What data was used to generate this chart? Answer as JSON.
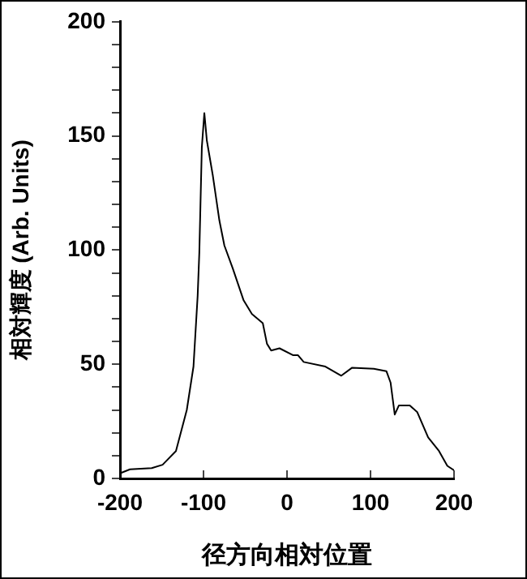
{
  "chart_data": {
    "type": "line",
    "xlabel": "径方向相対位置",
    "ylabel": "相対輝度 (Arb. Units)",
    "xlim": [
      -200,
      200
    ],
    "xticks": [
      -200,
      -100,
      0,
      100,
      200
    ],
    "ylim": [
      0,
      200
    ],
    "yticks": [
      0,
      {
        "value": 10,
        "label": null
      },
      {
        "value": 20,
        "label": null
      },
      {
        "value": 30,
        "label": null
      },
      {
        "value": 40,
        "label": null
      },
      50,
      {
        "value": 60,
        "label": null
      },
      {
        "value": 70,
        "label": null
      },
      {
        "value": 80,
        "label": null
      },
      {
        "value": 90,
        "label": null
      },
      100,
      {
        "value": 110,
        "label": null
      },
      {
        "value": 120,
        "label": null
      },
      {
        "value": 130,
        "label": null
      },
      {
        "value": 140,
        "label": null
      },
      150,
      {
        "value": 160,
        "label": null
      },
      {
        "value": 170,
        "label": null
      },
      {
        "value": 180,
        "label": null
      },
      {
        "value": 190,
        "label": null
      },
      200
    ],
    "grid": false,
    "legend": false,
    "marker": "none",
    "line_style": "solid",
    "series": [
      {
        "color": "#000000",
        "x": [
          -199,
          -188,
          -162,
          -149,
          -133,
          -120,
          -112,
          -107,
          -105,
          -102,
          -99,
          -96,
          -89,
          -81,
          -75,
          -65,
          -52,
          -42,
          -29,
          -24,
          -19,
          -9,
          7,
          13,
          20,
          46,
          65,
          78,
          104,
          119,
          124,
          129,
          134,
          147,
          156,
          169,
          182,
          192,
          200
        ],
        "values": [
          2.4,
          4,
          4.5,
          6,
          12,
          30,
          49,
          80,
          99,
          145,
          160,
          148,
          133,
          113,
          102,
          92,
          78,
          72,
          68,
          59,
          56,
          57,
          54,
          54,
          51,
          49,
          45,
          48.5,
          48,
          47,
          42,
          28,
          32,
          32,
          29,
          18,
          12,
          5.5,
          3.6
        ]
      }
    ]
  }
}
